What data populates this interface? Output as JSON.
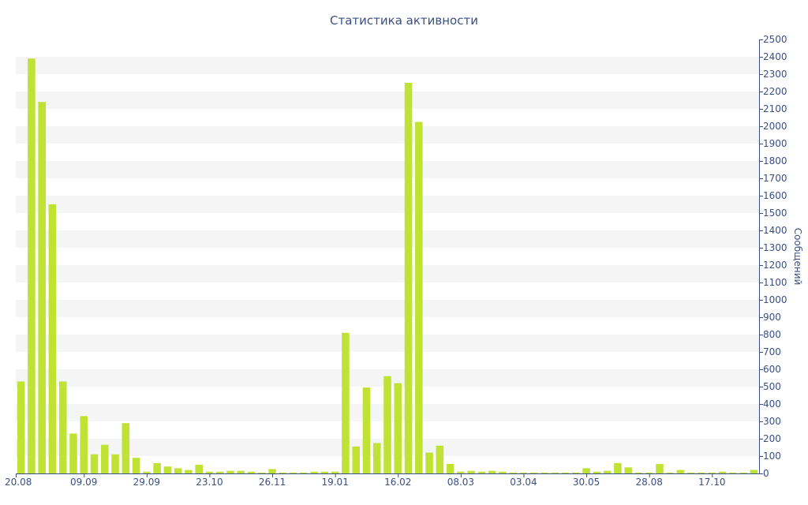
{
  "chart_data": {
    "type": "bar",
    "title": "Статистика активности",
    "ylabel": "Сообщений",
    "xlabel": "",
    "ylim": [
      0,
      2500
    ],
    "y_ticks": [
      0,
      100,
      200,
      300,
      400,
      500,
      600,
      700,
      800,
      900,
      1000,
      1100,
      1200,
      1300,
      1400,
      1500,
      1600,
      1700,
      1800,
      1900,
      2000,
      2100,
      2200,
      2300,
      2400,
      2500
    ],
    "x_tick_labels": [
      {
        "label": "20.08",
        "index": 0
      },
      {
        "label": "09.09",
        "index": 6
      },
      {
        "label": "29.09",
        "index": 12
      },
      {
        "label": "23.10",
        "index": 18
      },
      {
        "label": "26.11",
        "index": 24
      },
      {
        "label": "19.01",
        "index": 30
      },
      {
        "label": "16.02",
        "index": 36
      },
      {
        "label": "08.03",
        "index": 42
      },
      {
        "label": "03.04",
        "index": 48
      },
      {
        "label": "30.05",
        "index": 54
      },
      {
        "label": "28.08",
        "index": 60
      },
      {
        "label": "17.10",
        "index": 66
      }
    ],
    "bar_color": "#bfe234",
    "band_color": "#f5f5f5",
    "axis_color": "#3a4f86",
    "grid": true,
    "y_axis_side": "right",
    "values": [
      530,
      2390,
      2140,
      1550,
      530,
      230,
      330,
      110,
      165,
      110,
      290,
      90,
      10,
      60,
      40,
      30,
      20,
      50,
      10,
      10,
      15,
      15,
      10,
      5,
      25,
      5,
      5,
      5,
      10,
      10,
      10,
      810,
      155,
      495,
      175,
      560,
      520,
      2250,
      2025,
      120,
      160,
      55,
      10,
      15,
      10,
      15,
      10,
      5,
      5,
      5,
      5,
      5,
      5,
      5,
      30,
      10,
      15,
      60,
      35,
      5,
      5,
      55,
      5,
      20,
      5,
      5,
      5,
      10,
      5,
      5,
      20
    ]
  }
}
